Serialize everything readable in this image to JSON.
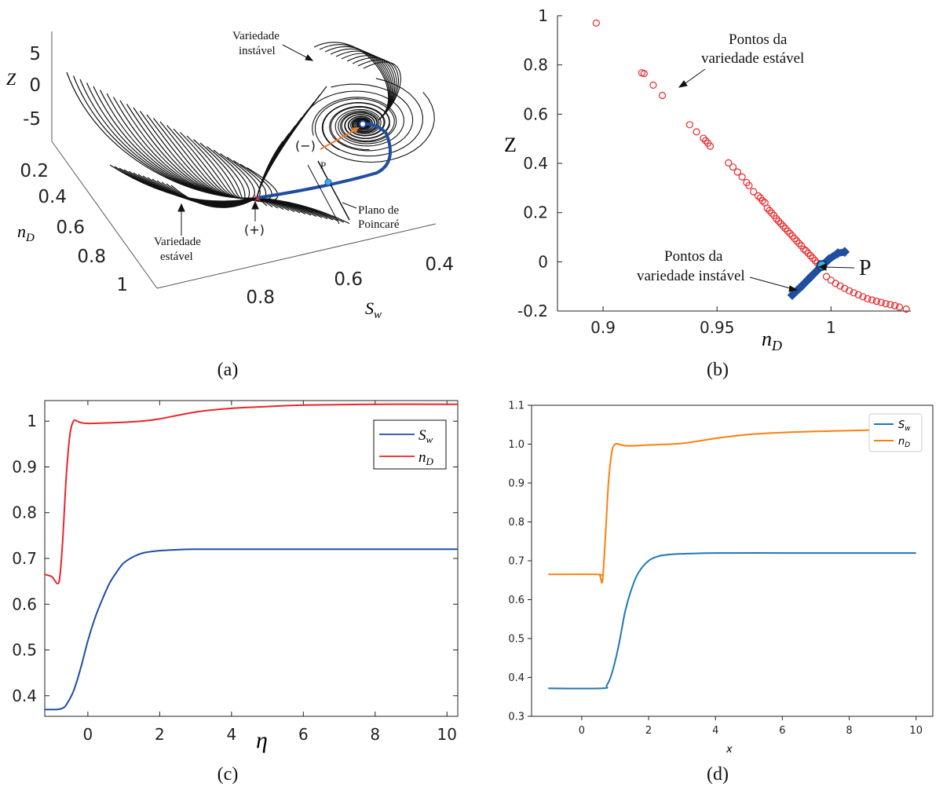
{
  "panel_captions": [
    "(a)",
    "(b)",
    "(c)",
    "(d)"
  ],
  "panel_a": {
    "z_label": "Z",
    "z_ticks": [
      "5",
      "0",
      "-5"
    ],
    "nd_label": "n_D",
    "nd_ticks": [
      "0.2",
      "0.4",
      "0.6",
      "0.8",
      "1"
    ],
    "sw_label": "S_w",
    "sw_ticks": [
      "0.8",
      "0.6",
      "0.4"
    ],
    "annotations": {
      "unstable_manifold": [
        "Variedade",
        "instável"
      ],
      "stable_manifold": [
        "Variedade",
        "estável"
      ],
      "poincare_plane": [
        "Plano de",
        "Poincaré"
      ],
      "point_p": "P",
      "minus": "(−)",
      "plus": "(+)"
    }
  },
  "chart_data": [
    {
      "panel": "b",
      "type": "scatter",
      "xlabel": "n_D",
      "ylabel": "Z",
      "xlim": [
        0.88,
        1.035
      ],
      "ylim": [
        -0.2,
        1.0
      ],
      "x_ticks": [
        "0.9",
        "0.95",
        "1"
      ],
      "y_ticks": [
        "1",
        "0.8",
        "0.6",
        "0.4",
        "0.2",
        "0",
        "-0.2"
      ],
      "annotations": {
        "stable_points": [
          "Pontos da",
          "variedade estável"
        ],
        "unstable_points": [
          "Pontos da",
          "variedade instável"
        ],
        "point_p": "P"
      },
      "colors": {
        "stable": "#e8262a",
        "unstable": "#1f4ea1",
        "point": "#3cb0e6"
      },
      "point_p": [
        0.996,
        -0.015
      ],
      "stable_points_x": [
        0.897,
        0.917,
        0.918,
        0.922,
        0.926,
        0.938,
        0.941,
        0.944,
        0.945,
        0.946,
        0.947,
        0.955,
        0.957,
        0.959,
        0.961,
        0.963,
        0.964,
        0.966,
        0.968,
        0.969,
        0.97,
        0.971,
        0.972,
        0.973,
        0.974,
        0.975,
        0.976,
        0.977,
        0.978,
        0.979,
        0.98,
        0.981,
        0.982,
        0.983,
        0.984,
        0.985,
        0.986,
        0.987,
        0.988,
        0.989,
        0.99,
        0.991,
        0.992,
        0.993,
        0.994,
        0.995,
        0.998,
        1.0,
        1.002,
        1.004,
        1.006,
        1.008,
        1.01,
        1.012,
        1.014,
        1.016,
        1.018,
        1.02,
        1.022,
        1.024,
        1.026,
        1.028,
        1.03,
        1.033
      ],
      "stable_points_y": [
        0.97,
        0.768,
        0.765,
        0.718,
        0.676,
        0.557,
        0.528,
        0.502,
        0.492,
        0.482,
        0.47,
        0.402,
        0.385,
        0.365,
        0.345,
        0.322,
        0.31,
        0.285,
        0.268,
        0.26,
        0.248,
        0.24,
        0.218,
        0.208,
        0.198,
        0.188,
        0.175,
        0.165,
        0.155,
        0.145,
        0.135,
        0.125,
        0.115,
        0.105,
        0.095,
        0.085,
        0.075,
        0.065,
        0.052,
        0.045,
        0.035,
        0.025,
        0.015,
        0.005,
        -0.005,
        -0.015,
        -0.06,
        -0.075,
        -0.088,
        -0.098,
        -0.108,
        -0.118,
        -0.126,
        -0.134,
        -0.142,
        -0.15,
        -0.155,
        -0.16,
        -0.165,
        -0.17,
        -0.174,
        -0.178,
        -0.184,
        -0.192
      ],
      "unstable_points_x": [
        0.983,
        0.987,
        0.991,
        0.995,
        0.999,
        1.003,
        1.006
      ],
      "unstable_points_y": [
        -0.135,
        -0.1,
        -0.062,
        -0.025,
        0.01,
        0.035,
        0.04
      ]
    },
    {
      "panel": "c",
      "type": "line",
      "xlabel": "η",
      "ylabel": "",
      "xlim": [
        -1.2,
        10.3
      ],
      "ylim": [
        0.355,
        1.045
      ],
      "x_ticks": [
        "0",
        "2",
        "4",
        "6",
        "8",
        "10"
      ],
      "y_ticks": [
        "1",
        "0.9",
        "0.8",
        "0.7",
        "0.6",
        "0.5",
        "0.4"
      ],
      "legend_position": "top-right",
      "series": [
        {
          "name": "S_w",
          "color": "#1f4ea1",
          "x": [
            -1.2,
            -0.85,
            -0.7,
            -0.6,
            -0.4,
            -0.2,
            0.0,
            0.2,
            0.4,
            0.6,
            0.8,
            1.0,
            1.3,
            1.6,
            2.0,
            2.5,
            3.0,
            4.0,
            6.0,
            8.0,
            10.3
          ],
          "y": [
            0.37,
            0.37,
            0.373,
            0.38,
            0.41,
            0.46,
            0.52,
            0.57,
            0.61,
            0.645,
            0.67,
            0.69,
            0.705,
            0.713,
            0.717,
            0.719,
            0.72,
            0.72,
            0.72,
            0.72,
            0.72
          ]
        },
        {
          "name": "n_D",
          "color": "#e8262a",
          "x": [
            -1.2,
            -1.0,
            -0.85,
            -0.78,
            -0.7,
            -0.6,
            -0.5,
            -0.4,
            -0.3,
            -0.2,
            0.0,
            0.5,
            1.5,
            2.0,
            3.0,
            4.0,
            5.0,
            6.0,
            8.0,
            10.3
          ],
          "y": [
            0.665,
            0.66,
            0.645,
            0.66,
            0.74,
            0.88,
            0.97,
            1.0,
            1.0,
            0.997,
            0.995,
            0.996,
            1.0,
            1.005,
            1.02,
            1.028,
            1.032,
            1.035,
            1.037,
            1.037
          ]
        }
      ]
    },
    {
      "panel": "d",
      "type": "line",
      "xlabel": "x",
      "ylabel": "",
      "xlim": [
        -1.5,
        10.5
      ],
      "ylim": [
        0.3,
        1.1
      ],
      "x_ticks": [
        "0",
        "2",
        "4",
        "6",
        "8",
        "10"
      ],
      "y_ticks": [
        "1.1",
        "1.0",
        "0.9",
        "0.8",
        "0.7",
        "0.6",
        "0.5",
        "0.4",
        "0.3"
      ],
      "legend_position": "top-right",
      "series": [
        {
          "name": "S_w",
          "color": "#1f77b4",
          "x": [
            -1.0,
            0.6,
            0.75,
            0.9,
            1.1,
            1.3,
            1.5,
            1.7,
            2.0,
            2.3,
            2.6,
            3.0,
            4.0,
            6.0,
            8.0,
            10.0
          ],
          "y": [
            0.372,
            0.372,
            0.38,
            0.41,
            0.48,
            0.57,
            0.63,
            0.67,
            0.7,
            0.712,
            0.716,
            0.718,
            0.72,
            0.72,
            0.72,
            0.72
          ]
        },
        {
          "name": "n_D",
          "color": "#ff7f0e",
          "x": [
            -1.0,
            0.45,
            0.55,
            0.62,
            0.7,
            0.8,
            0.9,
            1.0,
            1.1,
            1.3,
            1.6,
            2.0,
            3.0,
            4.0,
            5.0,
            6.0,
            8.0,
            10.0
          ],
          "y": [
            0.665,
            0.665,
            0.66,
            0.648,
            0.75,
            0.9,
            0.98,
            1.0,
            1.0,
            0.996,
            0.996,
            0.998,
            1.002,
            1.015,
            1.025,
            1.03,
            1.035,
            1.038
          ]
        }
      ]
    }
  ]
}
